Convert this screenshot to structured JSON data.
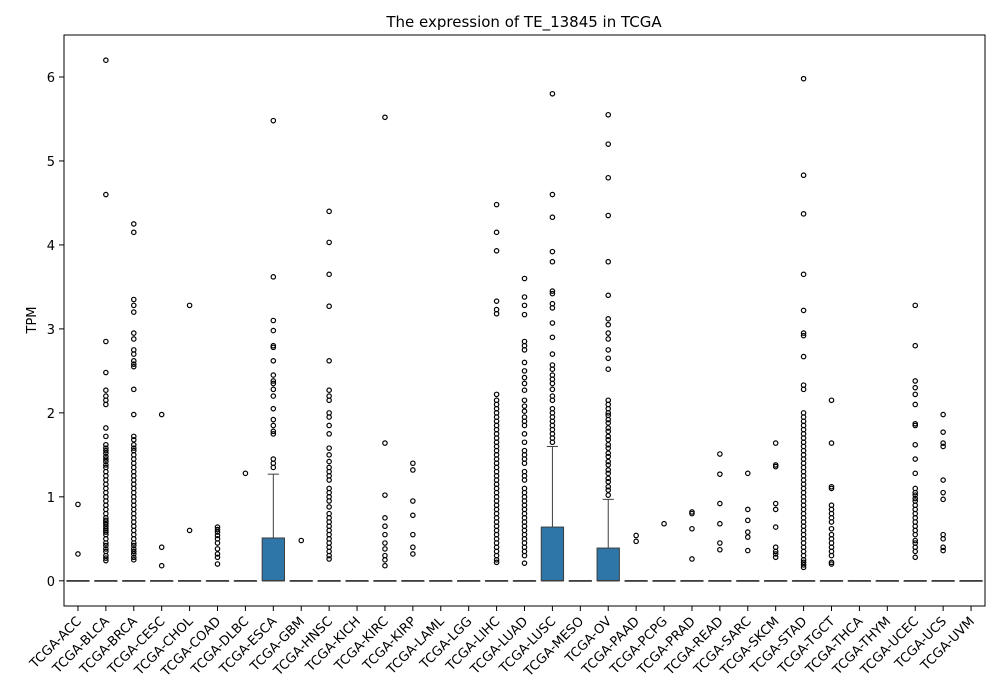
{
  "chart_data": {
    "type": "box",
    "title": "The expression of TE_13845 in TCGA",
    "xlabel": "",
    "ylabel": "TPM",
    "ylim": [
      -0.3,
      6.5
    ],
    "yticks": [
      0,
      1,
      2,
      3,
      4,
      5,
      6
    ],
    "grid": false,
    "legend": "none",
    "box_color": "#2f76a8",
    "categories": [
      "TCGA-ACC",
      "TCGA-BLCA",
      "TCGA-BRCA",
      "TCGA-CESC",
      "TCGA-CHOL",
      "TCGA-COAD",
      "TCGA-DLBC",
      "TCGA-ESCA",
      "TCGA-GBM",
      "TCGA-HNSC",
      "TCGA-KICH",
      "TCGA-KIRC",
      "TCGA-KIRP",
      "TCGA-LAML",
      "TCGA-LGG",
      "TCGA-LIHC",
      "TCGA-LUAD",
      "TCGA-LUSC",
      "TCGA-MESO",
      "TCGA-OV",
      "TCGA-PAAD",
      "TCGA-PCPG",
      "TCGA-PRAD",
      "TCGA-READ",
      "TCGA-SARC",
      "TCGA-SKCM",
      "TCGA-STAD",
      "TCGA-TGCT",
      "TCGA-THCA",
      "TCGA-THYM",
      "TCGA-UCEC",
      "TCGA-UCS",
      "TCGA-UVM"
    ],
    "boxes": [
      {
        "q1": 0,
        "median": 0,
        "q3": 0,
        "whislo": 0,
        "whishi": 0,
        "fliers": [
          0.91,
          0.32
        ]
      },
      {
        "q1": 0,
        "median": 0,
        "q3": 0,
        "whislo": 0,
        "whishi": 0,
        "fliers": [
          6.2,
          4.6,
          2.85,
          2.48,
          2.27,
          2.2,
          2.15,
          2.1,
          1.82,
          1.72,
          1.62,
          1.58,
          1.55,
          1.52,
          1.48,
          1.45,
          1.42,
          1.38,
          1.35,
          1.3,
          1.25,
          1.2,
          1.15,
          1.1,
          1.05,
          1.0,
          0.95,
          0.9,
          0.85,
          0.8,
          0.75,
          0.72,
          0.7,
          0.68,
          0.65,
          0.62,
          0.6,
          0.58,
          0.55,
          0.5,
          0.45,
          0.42,
          0.38,
          0.35,
          0.3,
          0.27,
          0.24
        ]
      },
      {
        "q1": 0,
        "median": 0,
        "q3": 0,
        "whislo": 0,
        "whishi": 0,
        "fliers": [
          4.25,
          4.15,
          3.35,
          3.28,
          3.2,
          2.95,
          2.88,
          2.75,
          2.7,
          2.62,
          2.58,
          2.55,
          2.28,
          1.98,
          1.72,
          1.68,
          1.62,
          1.58,
          1.55,
          1.5,
          1.45,
          1.4,
          1.35,
          1.3,
          1.25,
          1.2,
          1.15,
          1.1,
          1.05,
          1.0,
          0.95,
          0.9,
          0.85,
          0.8,
          0.75,
          0.7,
          0.65,
          0.6,
          0.55,
          0.5,
          0.45,
          0.42,
          0.38,
          0.35,
          0.32,
          0.28,
          0.25
        ]
      },
      {
        "q1": 0,
        "median": 0,
        "q3": 0,
        "whislo": 0,
        "whishi": 0,
        "fliers": [
          1.98,
          0.4,
          0.18
        ]
      },
      {
        "q1": 0,
        "median": 0,
        "q3": 0,
        "whislo": 0,
        "whishi": 0,
        "fliers": [
          3.28,
          0.6
        ]
      },
      {
        "q1": 0,
        "median": 0,
        "q3": 0,
        "whislo": 0,
        "whishi": 0,
        "fliers": [
          0.64,
          0.61,
          0.58,
          0.54,
          0.5,
          0.45,
          0.38,
          0.32,
          0.28,
          0.2
        ]
      },
      {
        "q1": 0,
        "median": 0,
        "q3": 0,
        "whislo": 0,
        "whishi": 0,
        "fliers": [
          1.28
        ]
      },
      {
        "q1": 0,
        "median": 0,
        "q3": 0.51,
        "whislo": 0,
        "whishi": 1.27,
        "fliers": [
          5.48,
          3.62,
          3.1,
          2.98,
          2.8,
          2.78,
          2.62,
          2.45,
          2.38,
          2.35,
          2.28,
          2.2,
          2.05,
          1.92,
          1.85,
          1.78,
          1.75,
          1.45,
          1.4,
          1.35
        ]
      },
      {
        "q1": 0,
        "median": 0,
        "q3": 0,
        "whislo": 0,
        "whishi": 0,
        "fliers": [
          0.48
        ]
      },
      {
        "q1": 0,
        "median": 0,
        "q3": 0,
        "whislo": 0,
        "whishi": 0,
        "fliers": [
          4.4,
          4.03,
          3.65,
          3.27,
          2.62,
          2.27,
          2.2,
          2.15,
          2.0,
          1.95,
          1.85,
          1.75,
          1.58,
          1.5,
          1.42,
          1.35,
          1.3,
          1.25,
          1.2,
          1.1,
          1.05,
          1.0,
          0.95,
          0.88,
          0.8,
          0.75,
          0.7,
          0.65,
          0.6,
          0.55,
          0.5,
          0.45,
          0.4,
          0.35,
          0.3,
          0.26
        ]
      },
      {
        "q1": 0,
        "median": 0,
        "q3": 0,
        "whislo": 0,
        "whishi": 0,
        "fliers": []
      },
      {
        "q1": 0,
        "median": 0,
        "q3": 0,
        "whislo": 0,
        "whishi": 0,
        "fliers": [
          5.52,
          1.64,
          1.02,
          0.75,
          0.65,
          0.55,
          0.45,
          0.38,
          0.3,
          0.25,
          0.18
        ]
      },
      {
        "q1": 0,
        "median": 0,
        "q3": 0,
        "whislo": 0,
        "whishi": 0,
        "fliers": [
          1.4,
          1.32,
          0.95,
          0.78,
          0.55,
          0.4,
          0.32
        ]
      },
      {
        "q1": 0,
        "median": 0,
        "q3": 0,
        "whislo": 0,
        "whishi": 0,
        "fliers": []
      },
      {
        "q1": 0,
        "median": 0,
        "q3": 0,
        "whislo": 0,
        "whishi": 0,
        "fliers": []
      },
      {
        "q1": 0,
        "median": 0,
        "q3": 0,
        "whislo": 0,
        "whishi": 0,
        "fliers": [
          4.48,
          4.15,
          3.93,
          3.33,
          3.23,
          3.18,
          2.22,
          2.15,
          2.1,
          2.05,
          2.0,
          1.95,
          1.9,
          1.85,
          1.8,
          1.75,
          1.7,
          1.65,
          1.6,
          1.55,
          1.5,
          1.45,
          1.4,
          1.35,
          1.3,
          1.25,
          1.2,
          1.15,
          1.1,
          1.05,
          1.0,
          0.95,
          0.9,
          0.85,
          0.8,
          0.75,
          0.7,
          0.65,
          0.6,
          0.55,
          0.5,
          0.45,
          0.4,
          0.35,
          0.3,
          0.25,
          0.22
        ]
      },
      {
        "q1": 0,
        "median": 0,
        "q3": 0,
        "whislo": 0,
        "whishi": 0,
        "fliers": [
          3.6,
          3.38,
          3.28,
          3.17,
          2.85,
          2.8,
          2.75,
          2.6,
          2.5,
          2.42,
          2.35,
          2.27,
          2.15,
          2.08,
          2.02,
          1.95,
          1.9,
          1.85,
          1.75,
          1.65,
          1.55,
          1.5,
          1.45,
          1.4,
          1.3,
          1.25,
          1.2,
          1.1,
          1.05,
          1.0,
          0.95,
          0.9,
          0.85,
          0.8,
          0.75,
          0.7,
          0.65,
          0.6,
          0.55,
          0.5,
          0.45,
          0.4,
          0.35,
          0.3,
          0.21
        ]
      },
      {
        "q1": 0,
        "median": 0,
        "q3": 0.64,
        "whislo": 0,
        "whishi": 1.6,
        "fliers": [
          5.8,
          4.6,
          4.33,
          3.92,
          3.8,
          3.45,
          3.42,
          3.3,
          3.25,
          3.07,
          2.9,
          2.7,
          2.57,
          2.52,
          2.45,
          2.4,
          2.35,
          2.28,
          2.2,
          2.15,
          2.05,
          2.0,
          1.95,
          1.9,
          1.85,
          1.8,
          1.75,
          1.7,
          1.65
        ]
      },
      {
        "q1": 0,
        "median": 0,
        "q3": 0,
        "whislo": 0,
        "whishi": 0,
        "fliers": []
      },
      {
        "q1": 0,
        "median": 0,
        "q3": 0.39,
        "whislo": 0,
        "whishi": 0.97,
        "fliers": [
          5.55,
          5.2,
          4.8,
          4.35,
          3.8,
          3.4,
          3.12,
          3.05,
          2.95,
          2.88,
          2.75,
          2.65,
          2.52,
          2.15,
          2.1,
          2.05,
          2.0,
          1.97,
          1.92,
          1.88,
          1.82,
          1.78,
          1.72,
          1.68,
          1.62,
          1.58,
          1.52,
          1.48,
          1.42,
          1.38,
          1.32,
          1.28,
          1.22,
          1.18,
          1.12,
          1.08,
          1.02
        ]
      },
      {
        "q1": 0,
        "median": 0,
        "q3": 0,
        "whislo": 0,
        "whishi": 0,
        "fliers": [
          0.54,
          0.47
        ]
      },
      {
        "q1": 0,
        "median": 0,
        "q3": 0,
        "whislo": 0,
        "whishi": 0,
        "fliers": [
          0.68
        ]
      },
      {
        "q1": 0,
        "median": 0,
        "q3": 0,
        "whislo": 0,
        "whishi": 0,
        "fliers": [
          0.82,
          0.8,
          0.62,
          0.26
        ]
      },
      {
        "q1": 0,
        "median": 0,
        "q3": 0,
        "whislo": 0,
        "whishi": 0,
        "fliers": [
          1.51,
          1.27,
          0.92,
          0.68,
          0.45,
          0.37
        ]
      },
      {
        "q1": 0,
        "median": 0,
        "q3": 0,
        "whislo": 0,
        "whishi": 0,
        "fliers": [
          1.28,
          0.85,
          0.72,
          0.58,
          0.52,
          0.36
        ]
      },
      {
        "q1": 0,
        "median": 0,
        "q3": 0,
        "whislo": 0,
        "whishi": 0,
        "fliers": [
          1.64,
          1.38,
          1.36,
          0.92,
          0.85,
          0.64,
          0.4,
          0.35,
          0.32,
          0.28
        ]
      },
      {
        "q1": 0,
        "median": 0,
        "q3": 0,
        "whislo": 0,
        "whishi": 0,
        "fliers": [
          5.98,
          4.83,
          4.37,
          3.65,
          3.22,
          2.95,
          2.92,
          2.67,
          2.33,
          2.28,
          2.0,
          1.95,
          1.9,
          1.85,
          1.8,
          1.75,
          1.7,
          1.65,
          1.6,
          1.55,
          1.5,
          1.45,
          1.4,
          1.35,
          1.3,
          1.25,
          1.2,
          1.15,
          1.1,
          1.05,
          1.0,
          0.95,
          0.9,
          0.85,
          0.8,
          0.75,
          0.7,
          0.65,
          0.6,
          0.55,
          0.5,
          0.45,
          0.4,
          0.35,
          0.3,
          0.25,
          0.22,
          0.19,
          0.16
        ]
      },
      {
        "q1": 0,
        "median": 0,
        "q3": 0,
        "whislo": 0,
        "whishi": 0,
        "fliers": [
          2.15,
          1.64,
          1.12,
          1.1,
          0.9,
          0.85,
          0.8,
          0.75,
          0.7,
          0.62,
          0.55,
          0.5,
          0.45,
          0.4,
          0.35,
          0.3,
          0.22,
          0.2
        ]
      },
      {
        "q1": 0,
        "median": 0,
        "q3": 0,
        "whislo": 0,
        "whishi": 0,
        "fliers": []
      },
      {
        "q1": 0,
        "median": 0,
        "q3": 0,
        "whislo": 0,
        "whishi": 0,
        "fliers": []
      },
      {
        "q1": 0,
        "median": 0,
        "q3": 0,
        "whislo": 0,
        "whishi": 0,
        "fliers": [
          3.28,
          2.8,
          2.38,
          2.3,
          2.22,
          2.1,
          1.87,
          1.85,
          1.62,
          1.45,
          1.28,
          1.1,
          1.05,
          1.02,
          0.98,
          0.95,
          0.9,
          0.85,
          0.8,
          0.75,
          0.7,
          0.65,
          0.6,
          0.55,
          0.48,
          0.45,
          0.4,
          0.35,
          0.28
        ]
      },
      {
        "q1": 0,
        "median": 0,
        "q3": 0,
        "whislo": 0,
        "whishi": 0,
        "fliers": [
          1.98,
          1.77,
          1.64,
          1.6,
          1.2,
          1.05,
          0.97,
          0.55,
          0.5,
          0.4,
          0.36
        ]
      },
      {
        "q1": 0,
        "median": 0,
        "q3": 0,
        "whislo": 0,
        "whishi": 0,
        "fliers": []
      }
    ]
  }
}
